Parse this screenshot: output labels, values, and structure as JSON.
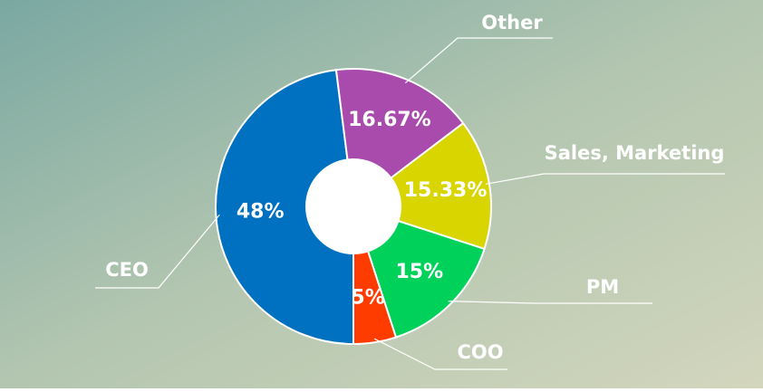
{
  "chart_data": {
    "type": "donut",
    "categories": [
      "CEO",
      "Other",
      "Sales, Marketing",
      "PM",
      "COO"
    ],
    "values": [
      48,
      16.67,
      15.33,
      15,
      5
    ],
    "value_labels": [
      "48%",
      "16.67%",
      "15.33%",
      "15%",
      "5%"
    ],
    "colors": [
      "#0070c0",
      "#a94aad",
      "#d9d500",
      "#00d15a",
      "#ff3c00"
    ]
  }
}
